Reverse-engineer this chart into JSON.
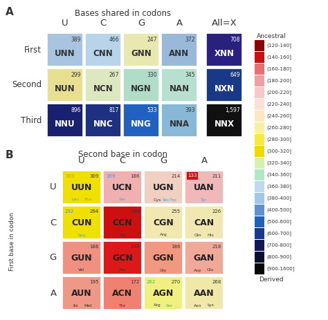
{
  "panel_A_title": "Bases shared in codons",
  "panel_B_title": "Second base in codon",
  "panel_A_col_labels": [
    "U",
    "C",
    "G",
    "A",
    "All=X"
  ],
  "panel_A_row_labels": [
    "First",
    "Second",
    "Third"
  ],
  "panel_B_col_labels": [
    "U",
    "C",
    "G",
    "A"
  ],
  "panel_B_row_labels": [
    "U",
    "C",
    "G",
    "A"
  ],
  "panel_B_ylabel": "First base in codon",
  "panel_A_cells": [
    [
      {
        "num": "389",
        "label": "UNN",
        "color": "#a8c4e0"
      },
      {
        "num": "466",
        "label": "CNN",
        "color": "#b8d4e8"
      },
      {
        "num": "247",
        "label": "GNN",
        "color": "#e8e8b0"
      },
      {
        "num": "372",
        "label": "ANN",
        "color": "#9ab8d8"
      },
      {
        "num": "708",
        "label": "XNN",
        "color": "#2a2080"
      }
    ],
    [
      {
        "num": "299",
        "label": "NUN",
        "color": "#e8e090"
      },
      {
        "num": "267",
        "label": "NCN",
        "color": "#dde8c0"
      },
      {
        "num": "330",
        "label": "NGN",
        "color": "#b0dcc8"
      },
      {
        "num": "345",
        "label": "NAN",
        "color": "#b8e0d0"
      },
      {
        "num": "649",
        "label": "NXN",
        "color": "#1a3888"
      }
    ],
    [
      {
        "num": "896",
        "label": "NNU",
        "color": "#1a2070"
      },
      {
        "num": "817",
        "label": "NNC",
        "color": "#1e3080"
      },
      {
        "num": "533",
        "label": "NNG",
        "color": "#2060c0"
      },
      {
        "num": "393",
        "label": "NNA",
        "color": "#88b8d8"
      },
      {
        "num": "1,597",
        "label": "NNX",
        "color": "#101010"
      }
    ]
  ],
  "panel_B_cells": [
    [
      {
        "num1": "303",
        "num1_color": "#c8a000",
        "num2": "309",
        "num2_color": "#333333",
        "label": "UUN",
        "sub1": "Leu",
        "sub1_color": "#40a0f0",
        "sub2": "Phe",
        "sub2_color": "#c8a000",
        "color": "#f0e000",
        "num1_bg": null
      },
      {
        "num1": "169",
        "num1_color": "#4090e0",
        "num2": "186",
        "num2_color": "#333333",
        "label": "UCN",
        "sub1": "Ser",
        "sub1_color": "#40a0f0",
        "sub2": null,
        "sub2_color": null,
        "color": "#f0b0b0",
        "num1_bg": null
      },
      {
        "num1": "214",
        "num1_color": "#333333",
        "num2": null,
        "num2_color": null,
        "label": "UGN",
        "sub1": "Cys",
        "sub1_color": "#333333",
        "sub2": "SecTrp",
        "sub2_color": "#40a0f0",
        "color": "#f0d0c0",
        "num1_bg": null
      },
      {
        "num1": "133",
        "num1_color": "#ffffff",
        "num2": "211",
        "num2_color": "#333333",
        "label": "UAN",
        "sub1": "Tyr",
        "sub1_color": "#40a0f0",
        "sub2": null,
        "sub2_color": null,
        "color": "#f0b8b8",
        "num1_bg": "#cc1010"
      }
    ],
    [
      {
        "num1": "232",
        "num1_color": "#4090e0",
        "num2": "294",
        "num2_color": "#333333",
        "label": "CUN",
        "sub1": "Leu",
        "sub1_color": "#40a0f0",
        "sub2": null,
        "sub2_color": null,
        "color": "#f0e000",
        "num1_bg": null
      },
      {
        "num1": "144",
        "num1_color": "#333333",
        "num2": null,
        "num2_color": null,
        "label": "CCN",
        "sub1": "Pro",
        "sub1_color": "#333333",
        "sub2": null,
        "sub2_color": null,
        "color": "#cc1010",
        "num1_bg": null
      },
      {
        "num1": "255",
        "num1_color": "#333333",
        "num2": null,
        "num2_color": null,
        "label": "CGN",
        "sub1": "Arg",
        "sub1_color": "#333333",
        "sub2": null,
        "sub2_color": null,
        "color": "#f0e8b0",
        "num1_bg": null
      },
      {
        "num1": "226",
        "num1_color": "#333333",
        "num2": null,
        "num2_color": null,
        "label": "CAN",
        "sub1": "Gln",
        "sub1_color": "#333333",
        "sub2": "His",
        "sub2_color": "#333333",
        "color": "#f0e8b0",
        "num1_bg": null
      }
    ],
    [
      {
        "num1": "188",
        "num1_color": "#333333",
        "num2": null,
        "num2_color": null,
        "label": "GUN",
        "sub1": "Val",
        "sub1_color": "#333333",
        "sub2": null,
        "sub2_color": null,
        "color": "#f09080",
        "num1_bg": null
      },
      {
        "num1": "148",
        "num1_color": "#333333",
        "num2": null,
        "num2_color": null,
        "label": "GCN",
        "sub1": "Ala",
        "sub1_color": "#333333",
        "sub2": null,
        "sub2_color": null,
        "color": "#dd1818",
        "num1_bg": null
      },
      {
        "num1": "186",
        "num1_color": "#333333",
        "num2": null,
        "num2_color": null,
        "label": "GGN",
        "sub1": "Gly",
        "sub1_color": "#333333",
        "sub2": null,
        "sub2_color": null,
        "color": "#f09880",
        "num1_bg": null
      },
      {
        "num1": "218",
        "num1_color": "#333333",
        "num2": null,
        "num2_color": null,
        "label": "GAN",
        "sub1": "Asp",
        "sub1_color": "#333333",
        "sub2": "Glu",
        "sub2_color": "#333333",
        "color": "#f0a898",
        "num1_bg": null
      }
    ],
    [
      {
        "num1": "195",
        "num1_color": "#333333",
        "num2": null,
        "num2_color": null,
        "label": "AUN",
        "sub1": "Ile",
        "sub1_color": "#333333",
        "sub2": "Met",
        "sub2_color": "#333333",
        "color": "#f09888",
        "num1_bg": null
      },
      {
        "num1": "172",
        "num1_color": "#333333",
        "num2": null,
        "num2_color": null,
        "label": "ACN",
        "sub1": "Thr",
        "sub1_color": "#333333",
        "sub2": null,
        "sub2_color": null,
        "color": "#f08070",
        "num1_bg": null
      },
      {
        "num1": "262",
        "num1_color": "#40c040",
        "num2": "270",
        "num2_color": "#333333",
        "label": "AGN",
        "sub1": "Arg",
        "sub1_color": "#333333",
        "sub2": "Ser",
        "sub2_color": "#40c040",
        "color": "#f0f080",
        "num1_bg": null
      },
      {
        "num1": "268",
        "num1_color": "#333333",
        "num2": null,
        "num2_color": null,
        "label": "AAN",
        "sub1": "Asn",
        "sub1_color": "#333333",
        "sub2": "Lys",
        "sub2_color": "#333333",
        "color": "#f0e8a8",
        "num1_bg": null
      }
    ]
  ],
  "legend_title_top": "Ancestral",
  "legend_title_bottom": "Derived",
  "legend_labels": [
    "(120-140]",
    "(140-160]",
    "(160-180]",
    "(180-200]",
    "(200-220]",
    "(220-240]",
    "(240-260]",
    "(260-280]",
    "(280-300]",
    "(300-320]",
    "(320-340]",
    "(340-360]",
    "(360-380]",
    "(380-400]",
    "(400-500]",
    "(500-600]",
    "(600-700]",
    "(700-800]",
    "(800-900]",
    "(900-1600]"
  ],
  "legend_colors": [
    "#8b0000",
    "#cc1010",
    "#e87070",
    "#f0a0a0",
    "#f8c8c8",
    "#fce0d8",
    "#fce8c0",
    "#f8f0a0",
    "#f8e840",
    "#f0d800",
    "#d8f0b0",
    "#b0e8c8",
    "#c0d8f0",
    "#a0c8e8",
    "#6090d0",
    "#2060c0",
    "#183888",
    "#101858",
    "#0a0e30",
    "#080808"
  ]
}
